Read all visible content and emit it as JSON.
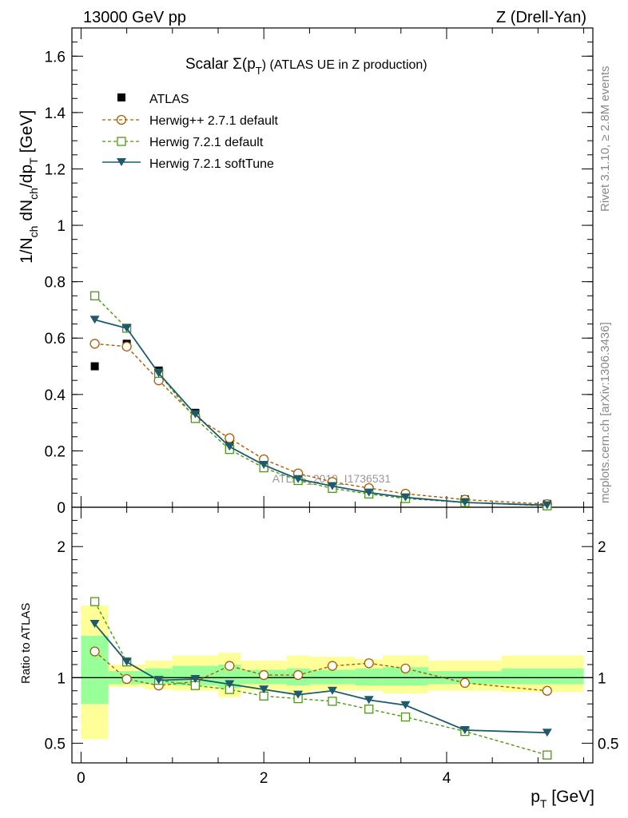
{
  "header": {
    "left": "13000 GeV pp",
    "right": "Z (Drell-Yan)"
  },
  "side_labels": {
    "rivet": "Rivet 3.1.10, ≥ 2.8M events",
    "mcplots": "mcplots.cern.ch [arXiv:1306.3436]"
  },
  "watermark": "ATLAS_2019_I1736531",
  "colors": {
    "atlas": "#000000",
    "herwigpp": "#b05a00",
    "herwig_default": "#4a9a10",
    "herwig_soft": "#1e5a6e",
    "band_yellow": "#ffff99",
    "band_green": "#99ff99"
  },
  "chart_data": [
    {
      "type": "line",
      "title": "Scalar Σ(p_T) (ATLAS UE in Z production)",
      "title_main": "Scalar Σ(p",
      "title_sub": "T",
      "title_rest": ") (ATLAS UE in Z production)",
      "ylabel": "1/N_ch dN_ch/dp_T [GeV]",
      "ylabel_parts": {
        "a": "1/N",
        "a_sub": "ch",
        "b": " dN",
        "b_sub": "ch",
        "c": "/dp",
        "c_sub": "T",
        "d": " [GeV]"
      },
      "ylim": [
        0,
        1.7
      ],
      "xlim": [
        -0.1,
        5.6
      ],
      "yticks": [
        0,
        0.2,
        0.4,
        0.6,
        0.8,
        1,
        1.2,
        1.4,
        1.6
      ],
      "ytick_labels": [
        "0",
        "0.2",
        "0.4",
        "0.6",
        "0.8",
        "1",
        "1.2",
        "1.4",
        "1.6"
      ],
      "x": [
        0.15,
        0.5,
        0.85,
        1.25,
        1.625,
        2.0,
        2.375,
        2.75,
        3.15,
        3.55,
        4.2,
        5.1
      ],
      "legend": [
        "ATLAS",
        "Herwig++ 2.7.1 default",
        "Herwig 7.2.1 default",
        "Herwig 7.2.1 softTune"
      ],
      "legend_position": "top-left",
      "series": [
        {
          "name": "ATLAS",
          "style": "marker-square",
          "values": [
            0.5,
            0.58,
            0.485,
            0.335,
            0.225,
            0.165,
            0.115,
            0.083,
            0.062,
            0.044,
            0.028,
            0.012
          ]
        },
        {
          "name": "Herwig++ 2.7.1 default",
          "style": "dashed-circle",
          "values": [
            0.58,
            0.57,
            0.45,
            0.32,
            0.245,
            0.17,
            0.12,
            0.09,
            0.068,
            0.048,
            0.027,
            0.011
          ]
        },
        {
          "name": "Herwig 7.2.1 default",
          "style": "dashed-square",
          "values": [
            0.75,
            0.635,
            0.475,
            0.315,
            0.205,
            0.14,
            0.095,
            0.067,
            0.047,
            0.031,
            0.017,
            0.005
          ]
        },
        {
          "name": "Herwig 7.2.1 softTune",
          "style": "solid-triangle",
          "values": [
            0.665,
            0.635,
            0.475,
            0.33,
            0.215,
            0.15,
            0.1,
            0.075,
            0.052,
            0.035,
            0.017,
            0.007
          ]
        }
      ]
    },
    {
      "type": "line",
      "ylabel": "Ratio to ATLAS",
      "xlabel": "p_T [GeV]",
      "xlabel_main": "p",
      "xlabel_sub": "T",
      "xlabel_rest": " [GeV]",
      "ylim": [
        0.35,
        2.3
      ],
      "xlim": [
        -0.1,
        5.6
      ],
      "yticks": [
        0.5,
        1,
        2
      ],
      "ytick_labels": [
        "0.5",
        "1",
        "2"
      ],
      "xticks": [
        0,
        2,
        4
      ],
      "xtick_labels": [
        "0",
        "2",
        "4"
      ],
      "x": [
        0.15,
        0.5,
        0.85,
        1.25,
        1.625,
        2.0,
        2.375,
        2.75,
        3.15,
        3.55,
        4.2,
        5.1
      ],
      "bins": [
        [
          0.0,
          0.3
        ],
        [
          0.3,
          0.7
        ],
        [
          0.7,
          1.0
        ],
        [
          1.0,
          1.5
        ],
        [
          1.5,
          1.75
        ],
        [
          1.75,
          2.25
        ],
        [
          2.25,
          2.5
        ],
        [
          2.5,
          3.0
        ],
        [
          3.0,
          3.3
        ],
        [
          3.3,
          3.8
        ],
        [
          3.8,
          4.6
        ],
        [
          4.6,
          5.5
        ]
      ],
      "band_yellow": [
        [
          0.53,
          1.55
        ],
        [
          0.93,
          1.1
        ],
        [
          0.91,
          1.13
        ],
        [
          0.9,
          1.17
        ],
        [
          0.85,
          1.19
        ],
        [
          0.9,
          1.13
        ],
        [
          0.88,
          1.17
        ],
        [
          0.9,
          1.16
        ],
        [
          0.9,
          1.14
        ],
        [
          0.88,
          1.17
        ],
        [
          0.9,
          1.13
        ],
        [
          0.89,
          1.17
        ]
      ],
      "band_green": [
        [
          0.8,
          1.32
        ],
        [
          0.95,
          1.05
        ],
        [
          0.95,
          1.07
        ],
        [
          0.94,
          1.09
        ],
        [
          0.92,
          1.1
        ],
        [
          0.95,
          1.06
        ],
        [
          0.94,
          1.07
        ],
        [
          0.95,
          1.06
        ],
        [
          0.94,
          1.07
        ],
        [
          0.94,
          1.08
        ],
        [
          0.95,
          1.05
        ],
        [
          0.95,
          1.07
        ]
      ],
      "series": [
        {
          "name": "Herwig++ 2.7.1 default",
          "style": "dashed-circle",
          "values": [
            1.2,
            0.99,
            0.94,
            0.97,
            1.09,
            1.02,
            1.02,
            1.09,
            1.11,
            1.07,
            0.96,
            0.9
          ]
        },
        {
          "name": "Herwig 7.2.1 default",
          "style": "dashed-square",
          "values": [
            1.58,
            1.12,
            0.98,
            0.94,
            0.91,
            0.86,
            0.84,
            0.82,
            0.76,
            0.7,
            0.59,
            0.41
          ]
        },
        {
          "name": "Herwig 7.2.1 softTune",
          "style": "solid-triangle",
          "values": [
            1.41,
            1.12,
            0.98,
            0.99,
            0.95,
            0.91,
            0.87,
            0.9,
            0.83,
            0.79,
            0.6,
            0.58
          ]
        }
      ]
    }
  ]
}
